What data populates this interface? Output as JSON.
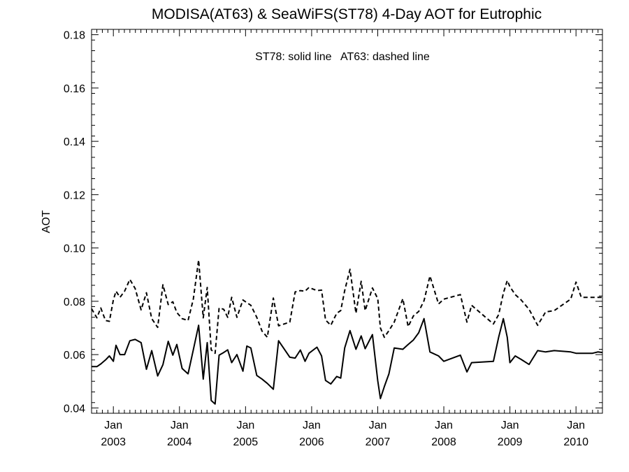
{
  "chart_data": {
    "type": "line",
    "title": "MODISA(AT63) & SeaWiFS(ST78) 4-Day AOT for Eutrophic",
    "ylabel": "AOT",
    "xlabel": "",
    "annotation": "ST78: solid line   AT63: dashed line",
    "xlim": [
      2002.67,
      2010.4
    ],
    "ylim": [
      0.038,
      0.182
    ],
    "y_ticks": [
      0.04,
      0.06,
      0.08,
      0.1,
      0.12,
      0.14,
      0.16,
      0.18
    ],
    "y_tick_labels": [
      "0.04",
      "0.06",
      "0.08",
      "0.10",
      "0.12",
      "0.14",
      "0.16",
      "0.18"
    ],
    "x_major_ticks": [
      {
        "x": 2003.0,
        "month": "Jan",
        "year": "2003"
      },
      {
        "x": 2004.0,
        "month": "Jan",
        "year": "2004"
      },
      {
        "x": 2005.0,
        "month": "Jan",
        "year": "2005"
      },
      {
        "x": 2006.0,
        "month": "Jan",
        "year": "2006"
      },
      {
        "x": 2007.0,
        "month": "Jan",
        "year": "2007"
      },
      {
        "x": 2008.0,
        "month": "Jan",
        "year": "2008"
      },
      {
        "x": 2009.0,
        "month": "Jan",
        "year": "2009"
      },
      {
        "x": 2010.0,
        "month": "Jan",
        "year": "2010"
      }
    ],
    "series": [
      {
        "line_style": "solid",
        "color": "#000000",
        "x": [
          2002.67,
          2002.75,
          2002.81,
          2002.88,
          2002.94,
          2003.0,
          2003.04,
          2003.1,
          2003.17,
          2003.25,
          2003.33,
          2003.42,
          2003.5,
          2003.58,
          2003.67,
          2003.75,
          2003.83,
          2003.9,
          2003.96,
          2004.04,
          2004.13,
          2004.21,
          2004.29,
          2004.36,
          2004.42,
          2004.48,
          2004.54,
          2004.6,
          2004.67,
          2004.73,
          2004.79,
          2004.87,
          2004.96,
          2005.02,
          2005.08,
          2005.17,
          2005.25,
          2005.33,
          2005.42,
          2005.5,
          2005.67,
          2005.75,
          2005.83,
          2005.9,
          2005.96,
          2006.08,
          2006.15,
          2006.21,
          2006.29,
          2006.38,
          2006.44,
          2006.5,
          2006.58,
          2006.67,
          2006.75,
          2006.81,
          2006.92,
          2007.0,
          2007.04,
          2007.1,
          2007.17,
          2007.25,
          2007.38,
          2007.46,
          2007.54,
          2007.62,
          2007.7,
          2007.79,
          2007.92,
          2008.0,
          2008.25,
          2008.35,
          2008.42,
          2008.75,
          2008.83,
          2008.9,
          2008.96,
          2009.0,
          2009.08,
          2009.17,
          2009.29,
          2009.42,
          2009.54,
          2009.67,
          2009.92,
          2010.0,
          2010.08,
          2010.17,
          2010.25,
          2010.33,
          2010.4
        ],
        "y": [
          0.0555,
          0.0555,
          0.0565,
          0.058,
          0.0595,
          0.0575,
          0.0635,
          0.06,
          0.06,
          0.0652,
          0.0657,
          0.0645,
          0.0545,
          0.0615,
          0.052,
          0.0562,
          0.065,
          0.0598,
          0.0638,
          0.0548,
          0.0528,
          0.0618,
          0.071,
          0.0508,
          0.0645,
          0.0428,
          0.0415,
          0.0598,
          0.0608,
          0.0618,
          0.057,
          0.06,
          0.0538,
          0.0632,
          0.0625,
          0.0522,
          0.0508,
          0.0492,
          0.047,
          0.0652,
          0.059,
          0.0587,
          0.0617,
          0.0575,
          0.0605,
          0.0628,
          0.0595,
          0.0503,
          0.049,
          0.0518,
          0.0512,
          0.0625,
          0.069,
          0.062,
          0.067,
          0.0622,
          0.0675,
          0.0502,
          0.0435,
          0.048,
          0.0528,
          0.0625,
          0.062,
          0.0638,
          0.0655,
          0.0682,
          0.0735,
          0.061,
          0.0595,
          0.0575,
          0.0598,
          0.0535,
          0.057,
          0.0575,
          0.0665,
          0.0735,
          0.0665,
          0.057,
          0.0595,
          0.0582,
          0.0563,
          0.0615,
          0.061,
          0.0615,
          0.061,
          0.0605,
          0.0605,
          0.0605,
          0.0605,
          0.061,
          0.0608
        ]
      },
      {
        "line_style": "dashed",
        "color": "#000000",
        "x": [
          2002.67,
          2002.75,
          2002.81,
          2002.88,
          2002.94,
          2003.0,
          2003.04,
          2003.1,
          2003.17,
          2003.25,
          2003.33,
          2003.42,
          2003.5,
          2003.58,
          2003.67,
          2003.75,
          2003.83,
          2003.9,
          2003.96,
          2004.04,
          2004.13,
          2004.21,
          2004.29,
          2004.36,
          2004.42,
          2004.48,
          2004.54,
          2004.6,
          2004.67,
          2004.73,
          2004.79,
          2004.87,
          2004.96,
          2005.02,
          2005.08,
          2005.17,
          2005.25,
          2005.33,
          2005.42,
          2005.5,
          2005.67,
          2005.75,
          2005.83,
          2005.9,
          2005.96,
          2006.08,
          2006.15,
          2006.21,
          2006.29,
          2006.38,
          2006.44,
          2006.5,
          2006.58,
          2006.67,
          2006.75,
          2006.81,
          2006.92,
          2007.0,
          2007.04,
          2007.1,
          2007.17,
          2007.25,
          2007.38,
          2007.46,
          2007.54,
          2007.62,
          2007.7,
          2007.79,
          2007.92,
          2008.0,
          2008.25,
          2008.35,
          2008.42,
          2008.75,
          2008.83,
          2008.9,
          2008.96,
          2009.0,
          2009.08,
          2009.17,
          2009.29,
          2009.42,
          2009.54,
          2009.67,
          2009.92,
          2010.0,
          2010.08,
          2010.17,
          2010.25,
          2010.33,
          2010.4
        ],
        "y": [
          0.0772,
          0.0738,
          0.0775,
          0.0728,
          0.0725,
          0.0805,
          0.0838,
          0.0815,
          0.0838,
          0.0882,
          0.0848,
          0.0768,
          0.0832,
          0.0735,
          0.0702,
          0.0862,
          0.0788,
          0.0798,
          0.0758,
          0.0735,
          0.0728,
          0.0808,
          0.0955,
          0.0738,
          0.0852,
          0.0618,
          0.0605,
          0.0775,
          0.077,
          0.074,
          0.0815,
          0.074,
          0.0805,
          0.0795,
          0.0785,
          0.074,
          0.0688,
          0.0665,
          0.0812,
          0.0708,
          0.0722,
          0.0835,
          0.084,
          0.0838,
          0.0852,
          0.084,
          0.0842,
          0.073,
          0.071,
          0.0755,
          0.0765,
          0.084,
          0.092,
          0.0755,
          0.0875,
          0.0765,
          0.085,
          0.081,
          0.07,
          0.0665,
          0.069,
          0.0722,
          0.081,
          0.0705,
          0.0745,
          0.0762,
          0.0802,
          0.0895,
          0.079,
          0.0808,
          0.0825,
          0.0722,
          0.0785,
          0.0715,
          0.075,
          0.083,
          0.0878,
          0.0855,
          0.0825,
          0.0805,
          0.077,
          0.071,
          0.076,
          0.0765,
          0.0808,
          0.0872,
          0.0815,
          0.0815,
          0.0815,
          0.0815,
          0.0815
        ]
      }
    ]
  }
}
